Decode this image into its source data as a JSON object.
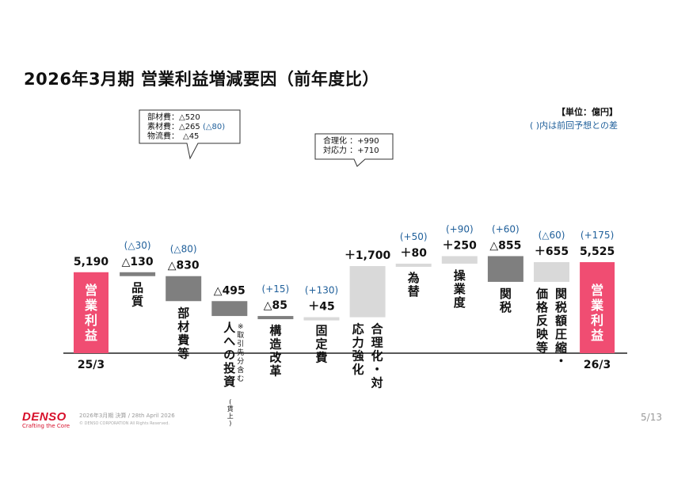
{
  "slide": {
    "title": "2026年3月期 営業利益増減要因（前年度比）",
    "unit": "【単位：億円】",
    "note": "( )内は前回予想との差",
    "page": "5/13"
  },
  "footer": {
    "brand": "DENSO",
    "tagline": "Crafting the Core",
    "line1": "2026年3月期 決算 / 28th April 2026",
    "line2": "© DENSO CORPORATION All Rights Reserved."
  },
  "callouts": [
    {
      "lines": [
        {
          "text": "部材費：△520",
          "extra": ""
        },
        {
          "text": "素材費：△265 ",
          "extra": "(△80)"
        },
        {
          "text": "物流費：　△45",
          "extra": ""
        }
      ]
    },
    {
      "lines": [
        {
          "text": "合理化 ：+990",
          "extra": ""
        },
        {
          "text": "対応力 ：+710",
          "extra": ""
        }
      ]
    }
  ],
  "chart_data": {
    "type": "waterfall",
    "title": "2026年3月期 営業利益増減要因（前年度比）",
    "unit": "億円",
    "colors": {
      "total": "#f04d72",
      "decrease": "#7f7f7f",
      "increase": "#d9d9d9",
      "diff": "#1f5f9a"
    },
    "steps": [
      {
        "kind": "total",
        "value": 5190,
        "value_label": "5,190",
        "diff": "",
        "label": "営業利益",
        "xlabel": "25/3"
      },
      {
        "kind": "decrease",
        "value": -130,
        "value_label": "△130",
        "diff": "(△30)",
        "label": "品質"
      },
      {
        "kind": "decrease",
        "value": -830,
        "value_label": "△830",
        "diff": "(△80)",
        "label": "部材費等"
      },
      {
        "kind": "decrease",
        "value": -495,
        "value_label": "△495",
        "diff": "",
        "label": "人への投資",
        "sublabel": "※取引先分含む",
        "sublabel2": "(賃上)"
      },
      {
        "kind": "decrease",
        "value": -85,
        "value_label": "△85",
        "diff": "(+15)",
        "label": "構造改革"
      },
      {
        "kind": "increase",
        "value": 45,
        "value_label": "＋45",
        "diff": "(+130)",
        "label": "固定費"
      },
      {
        "kind": "increase",
        "value": 1700,
        "value_label": "＋1,700",
        "diff": "",
        "label": "合理化・対応力強化"
      },
      {
        "kind": "increase",
        "value": 80,
        "value_label": "＋80",
        "diff": "(+50)",
        "label": "為替"
      },
      {
        "kind": "increase",
        "value": 250,
        "value_label": "＋250",
        "diff": "(+90)",
        "label": "操業度"
      },
      {
        "kind": "decrease",
        "value": -855,
        "value_label": "△855",
        "diff": "(+60)",
        "label": "関税"
      },
      {
        "kind": "increase",
        "value": 655,
        "value_label": "＋655",
        "diff": "(△60)",
        "label": "関税額圧縮・価格反映等"
      },
      {
        "kind": "total",
        "value": 5525,
        "value_label": "5,525",
        "diff": "(+175)",
        "label": "営業利益",
        "xlabel": "26/3"
      }
    ]
  }
}
